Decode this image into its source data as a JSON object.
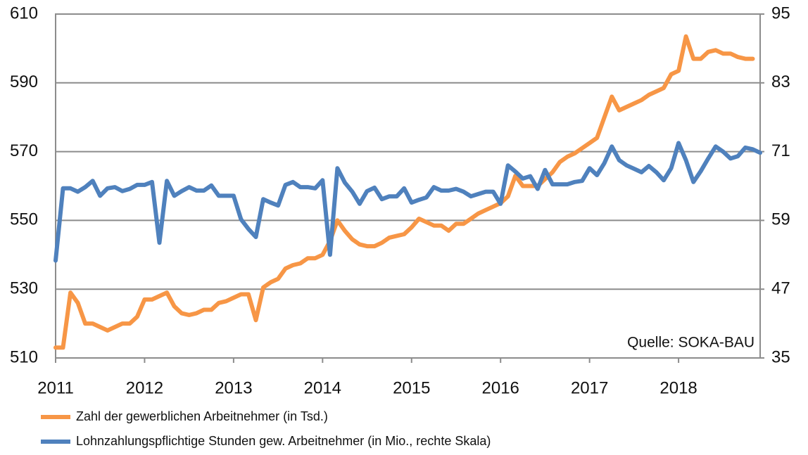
{
  "chart_data": {
    "type": "line",
    "annotation": "Quelle: SOKA-BAU",
    "categories": [
      "2011",
      null,
      null,
      null,
      null,
      null,
      null,
      null,
      null,
      null,
      null,
      null,
      "2012",
      null,
      null,
      null,
      null,
      null,
      null,
      null,
      null,
      null,
      null,
      null,
      "2013",
      null,
      null,
      null,
      null,
      null,
      null,
      null,
      null,
      null,
      null,
      null,
      "2014",
      null,
      null,
      null,
      null,
      null,
      null,
      null,
      null,
      null,
      null,
      null,
      "2015",
      null,
      null,
      null,
      null,
      null,
      null,
      null,
      null,
      null,
      null,
      null,
      "2016",
      null,
      null,
      null,
      null,
      null,
      null,
      null,
      null,
      null,
      null,
      null,
      "2017",
      null,
      null,
      null,
      null,
      null,
      null,
      null,
      null,
      null,
      null,
      null,
      "2018",
      null,
      null,
      null,
      null,
      null,
      null,
      null,
      null,
      null,
      null,
      null
    ],
    "series": [
      {
        "name": "Zahl der gewerblichen Arbeitnehmer (in Tsd.)",
        "color": "#f79646",
        "axis": "y",
        "values": [
          513,
          513,
          529,
          526,
          520,
          520,
          519,
          518,
          519,
          520,
          520,
          522,
          527,
          527,
          528,
          529,
          525,
          523,
          522.5,
          523,
          524,
          524,
          526,
          526.5,
          527.5,
          528.5,
          528.5,
          521,
          530.5,
          532,
          533,
          536,
          537,
          537.5,
          539,
          539,
          540,
          544,
          550,
          547,
          544.5,
          543,
          542.5,
          542.5,
          543.5,
          545,
          545.5,
          546,
          548,
          550.5,
          549.5,
          548.5,
          548.5,
          547,
          549,
          549,
          550.5,
          552,
          553,
          554,
          555,
          557,
          563,
          560,
          560,
          560,
          562,
          564,
          567,
          568.5,
          569.5,
          571,
          572.5,
          574,
          580,
          586,
          582,
          583,
          584,
          585,
          586.5,
          587.5,
          588.5,
          592.5,
          593.5,
          603.5,
          597,
          597,
          599,
          599.5,
          598.5,
          598.5,
          597.5,
          597,
          597,
          null
        ]
      },
      {
        "name": "Lohnzahlungspflichtige Stunden gew. Arbeitnehmer (in Mio., rechte Skala)",
        "color": "#4f81bd",
        "axis": "y2",
        "values": [
          52,
          64.6,
          64.6,
          64,
          64.8,
          65.9,
          63.3,
          64.6,
          64.8,
          64.1,
          64.5,
          65.2,
          65.2,
          65.7,
          55.1,
          65.9,
          63.3,
          64.1,
          64.8,
          64.2,
          64.2,
          65.1,
          63.3,
          63.3,
          63.3,
          59.2,
          57.5,
          56.1,
          62.7,
          62.1,
          61.6,
          65.2,
          65.7,
          64.8,
          64.8,
          64.6,
          66,
          53,
          68.1,
          65.6,
          64,
          61.9,
          64.1,
          64.7,
          62.7,
          63.2,
          63.2,
          64.6,
          62.1,
          62.6,
          63,
          64.8,
          64.2,
          64.2,
          64.5,
          64,
          63.2,
          63.6,
          64,
          64,
          61.9,
          68.6,
          67.5,
          66.3,
          66.7,
          64.5,
          67.8,
          65.3,
          65.3,
          65.3,
          65.7,
          65.9,
          68.1,
          66.9,
          69,
          71.9,
          69.5,
          68.6,
          68,
          67.4,
          68.5,
          67.4,
          66,
          68.1,
          72.5,
          69.5,
          65.7,
          67.6,
          69.8,
          71.9,
          71,
          69.8,
          70.2,
          71.7,
          71.4,
          70.8
        ]
      }
    ],
    "ylim": [
      510,
      610
    ],
    "yticks": [
      510,
      530,
      550,
      570,
      590,
      610
    ],
    "y2lim": [
      35,
      95
    ],
    "y2ticks": [
      35,
      47,
      59,
      71,
      83,
      95
    ],
    "grid": true
  }
}
